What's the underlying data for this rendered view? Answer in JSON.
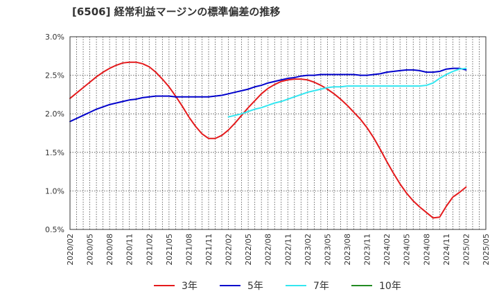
{
  "chart_data": {
    "type": "line",
    "title": "[6506]  経常利益マージンの標準偏差の推移",
    "xlabel": "",
    "ylabel": "",
    "ylim": [
      0.5,
      3.0
    ],
    "yticks": [
      "0.5%",
      "1.0%",
      "1.5%",
      "2.0%",
      "2.5%",
      "3.0%"
    ],
    "xticks": [
      "2020/02",
      "2020/05",
      "2020/08",
      "2020/11",
      "2021/02",
      "2021/05",
      "2021/08",
      "2021/11",
      "2022/02",
      "2022/05",
      "2022/08",
      "2022/11",
      "2023/02",
      "2023/05",
      "2023/08",
      "2023/11",
      "2024/02",
      "2024/05",
      "2024/08",
      "2024/11",
      "2025/02",
      "2025/05"
    ],
    "grid": true,
    "legend_position": "bottom",
    "series": [
      {
        "name": "3年",
        "color": "#e41a1c",
        "points": [
          [
            "2020/02",
            2.2
          ],
          [
            "2020/03",
            2.27
          ],
          [
            "2020/04",
            2.34
          ],
          [
            "2020/05",
            2.41
          ],
          [
            "2020/06",
            2.48
          ],
          [
            "2020/07",
            2.54
          ],
          [
            "2020/08",
            2.59
          ],
          [
            "2020/09",
            2.63
          ],
          [
            "2020/10",
            2.66
          ],
          [
            "2020/11",
            2.67
          ],
          [
            "2020/12",
            2.67
          ],
          [
            "2021/01",
            2.65
          ],
          [
            "2021/02",
            2.61
          ],
          [
            "2021/03",
            2.54
          ],
          [
            "2021/04",
            2.45
          ],
          [
            "2021/05",
            2.35
          ],
          [
            "2021/06",
            2.23
          ],
          [
            "2021/07",
            2.1
          ],
          [
            "2021/08",
            1.96
          ],
          [
            "2021/09",
            1.84
          ],
          [
            "2021/10",
            1.74
          ],
          [
            "2021/11",
            1.68
          ],
          [
            "2021/12",
            1.68
          ],
          [
            "2022/01",
            1.72
          ],
          [
            "2022/02",
            1.79
          ],
          [
            "2022/03",
            1.88
          ],
          [
            "2022/04",
            1.98
          ],
          [
            "2022/05",
            2.08
          ],
          [
            "2022/06",
            2.17
          ],
          [
            "2022/07",
            2.26
          ],
          [
            "2022/08",
            2.33
          ],
          [
            "2022/09",
            2.38
          ],
          [
            "2022/10",
            2.42
          ],
          [
            "2022/11",
            2.44
          ],
          [
            "2022/12",
            2.45
          ],
          [
            "2023/01",
            2.45
          ],
          [
            "2023/02",
            2.44
          ],
          [
            "2023/03",
            2.41
          ],
          [
            "2023/04",
            2.37
          ],
          [
            "2023/05",
            2.32
          ],
          [
            "2023/06",
            2.26
          ],
          [
            "2023/07",
            2.19
          ],
          [
            "2023/08",
            2.11
          ],
          [
            "2023/09",
            2.02
          ],
          [
            "2023/10",
            1.93
          ],
          [
            "2023/11",
            1.82
          ],
          [
            "2023/12",
            1.69
          ],
          [
            "2024/01",
            1.54
          ],
          [
            "2024/02",
            1.38
          ],
          [
            "2024/03",
            1.23
          ],
          [
            "2024/04",
            1.09
          ],
          [
            "2024/05",
            0.97
          ],
          [
            "2024/06",
            0.87
          ],
          [
            "2024/07",
            0.79
          ],
          [
            "2024/08",
            0.72
          ],
          [
            "2024/09",
            0.65
          ],
          [
            "2024/10",
            0.66
          ],
          [
            "2024/11",
            0.8
          ],
          [
            "2024/12",
            0.92
          ],
          [
            "2025/01",
            0.98
          ],
          [
            "2025/02",
            1.05
          ]
        ]
      },
      {
        "name": "5年",
        "color": "#0000cc",
        "points": [
          [
            "2020/02",
            1.9
          ],
          [
            "2020/03",
            1.94
          ],
          [
            "2020/04",
            1.98
          ],
          [
            "2020/05",
            2.02
          ],
          [
            "2020/06",
            2.06
          ],
          [
            "2020/07",
            2.09
          ],
          [
            "2020/08",
            2.12
          ],
          [
            "2020/09",
            2.14
          ],
          [
            "2020/10",
            2.16
          ],
          [
            "2020/11",
            2.18
          ],
          [
            "2020/12",
            2.19
          ],
          [
            "2021/01",
            2.21
          ],
          [
            "2021/02",
            2.22
          ],
          [
            "2021/03",
            2.23
          ],
          [
            "2021/04",
            2.23
          ],
          [
            "2021/05",
            2.23
          ],
          [
            "2021/06",
            2.22
          ],
          [
            "2021/07",
            2.22
          ],
          [
            "2021/08",
            2.22
          ],
          [
            "2021/09",
            2.22
          ],
          [
            "2021/10",
            2.22
          ],
          [
            "2021/11",
            2.22
          ],
          [
            "2021/12",
            2.23
          ],
          [
            "2022/01",
            2.24
          ],
          [
            "2022/02",
            2.26
          ],
          [
            "2022/03",
            2.28
          ],
          [
            "2022/04",
            2.3
          ],
          [
            "2022/05",
            2.32
          ],
          [
            "2022/06",
            2.35
          ],
          [
            "2022/07",
            2.37
          ],
          [
            "2022/08",
            2.4
          ],
          [
            "2022/09",
            2.42
          ],
          [
            "2022/10",
            2.44
          ],
          [
            "2022/11",
            2.46
          ],
          [
            "2022/12",
            2.47
          ],
          [
            "2023/01",
            2.49
          ],
          [
            "2023/02",
            2.5
          ],
          [
            "2023/03",
            2.5
          ],
          [
            "2023/04",
            2.51
          ],
          [
            "2023/05",
            2.51
          ],
          [
            "2023/06",
            2.51
          ],
          [
            "2023/07",
            2.51
          ],
          [
            "2023/08",
            2.51
          ],
          [
            "2023/09",
            2.51
          ],
          [
            "2023/10",
            2.5
          ],
          [
            "2023/11",
            2.5
          ],
          [
            "2023/12",
            2.51
          ],
          [
            "2024/01",
            2.52
          ],
          [
            "2024/02",
            2.54
          ],
          [
            "2024/03",
            2.55
          ],
          [
            "2024/04",
            2.56
          ],
          [
            "2024/05",
            2.57
          ],
          [
            "2024/06",
            2.57
          ],
          [
            "2024/07",
            2.56
          ],
          [
            "2024/08",
            2.54
          ],
          [
            "2024/09",
            2.54
          ],
          [
            "2024/10",
            2.55
          ],
          [
            "2024/11",
            2.58
          ],
          [
            "2024/12",
            2.59
          ],
          [
            "2025/01",
            2.59
          ],
          [
            "2025/02",
            2.57
          ]
        ]
      },
      {
        "name": "7年",
        "color": "#33e6f0",
        "points": [
          [
            "2022/02",
            1.96
          ],
          [
            "2022/03",
            1.98
          ],
          [
            "2022/04",
            2.0
          ],
          [
            "2022/05",
            2.03
          ],
          [
            "2022/06",
            2.06
          ],
          [
            "2022/07",
            2.08
          ],
          [
            "2022/08",
            2.11
          ],
          [
            "2022/09",
            2.14
          ],
          [
            "2022/10",
            2.16
          ],
          [
            "2022/11",
            2.19
          ],
          [
            "2022/12",
            2.22
          ],
          [
            "2023/01",
            2.25
          ],
          [
            "2023/02",
            2.28
          ],
          [
            "2023/03",
            2.3
          ],
          [
            "2023/04",
            2.32
          ],
          [
            "2023/05",
            2.34
          ],
          [
            "2023/06",
            2.35
          ],
          [
            "2023/07",
            2.35
          ],
          [
            "2023/08",
            2.36
          ],
          [
            "2023/09",
            2.36
          ],
          [
            "2023/10",
            2.36
          ],
          [
            "2023/11",
            2.36
          ],
          [
            "2023/12",
            2.36
          ],
          [
            "2024/01",
            2.36
          ],
          [
            "2024/02",
            2.36
          ],
          [
            "2024/03",
            2.36
          ],
          [
            "2024/04",
            2.36
          ],
          [
            "2024/05",
            2.36
          ],
          [
            "2024/06",
            2.36
          ],
          [
            "2024/07",
            2.36
          ],
          [
            "2024/08",
            2.37
          ],
          [
            "2024/09",
            2.4
          ],
          [
            "2024/10",
            2.46
          ],
          [
            "2024/11",
            2.51
          ],
          [
            "2024/12",
            2.55
          ],
          [
            "2025/01",
            2.58
          ],
          [
            "2025/02",
            2.59
          ]
        ]
      },
      {
        "name": "10年",
        "color": "#228b22",
        "points": []
      }
    ]
  }
}
